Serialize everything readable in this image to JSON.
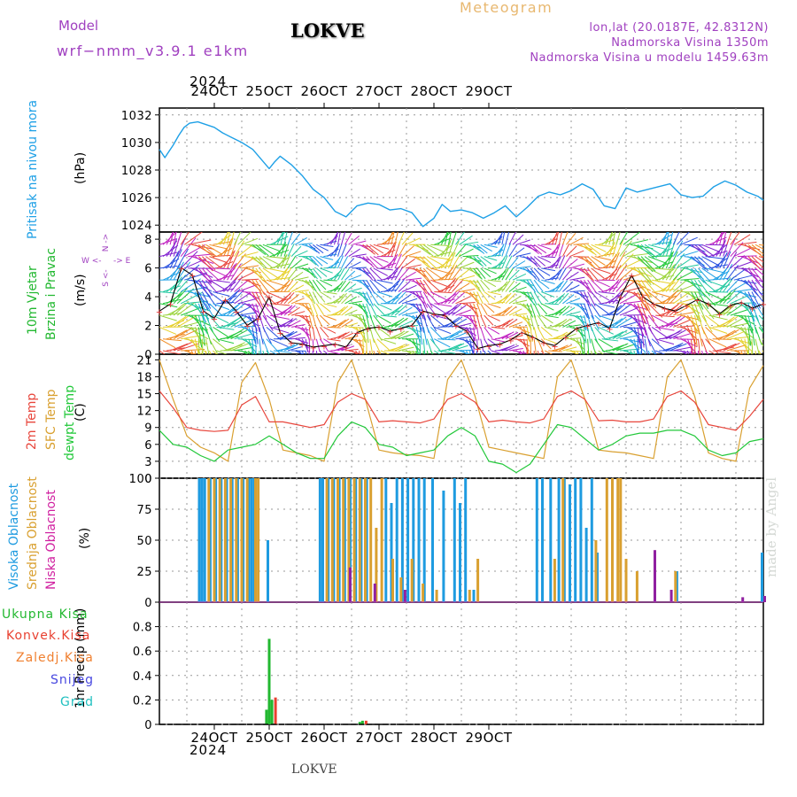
{
  "header": {
    "model_label": "Model",
    "model_name": "wrf−nmm_v3.9.1  e1km",
    "station": "LOKVE",
    "meteogram": "Meteogram",
    "lonlat": "lon,lat (20.0187E, 42.8312N)",
    "elev": "Nadmorska Visina 1350m",
    "elev_model": "Nadmorska Visina u modelu 1459.63m",
    "year": "2024",
    "footer_station": "LOKVE",
    "watermark": "made by Angel"
  },
  "colors": {
    "pressure": "#1ea0e6",
    "temp2m": "#e8463c",
    "sfc_temp": "#d9a030",
    "dewpt": "#22c83a",
    "high_cloud": "#1e9be0",
    "mid_cloud": "#d9a030",
    "low_cloud": "#9020a0",
    "ukupna": "#22b830",
    "konvek": "#e84030",
    "zaledj": "#f08030",
    "snijeg": "#4848e0",
    "grad": "#20c0c0",
    "wind_speed_line": "#000000",
    "wind_markers": "#e83838"
  },
  "chart_data": [
    {
      "type": "line",
      "panel": "pressure",
      "ylabel": "Pritisak na nivou mora",
      "unit": "(hPa)",
      "ylim": [
        1023.5,
        1032.5
      ],
      "yticks": [
        1024,
        1026,
        1028,
        1030,
        1032
      ],
      "x_unit": "days from 23 Oct 2024 12 UTC",
      "series": [
        {
          "x": [
            0,
            0.1,
            0.15,
            0.25,
            0.35,
            0.45,
            0.55,
            0.7,
            0.85,
            1.0,
            1.15,
            1.3,
            1.5,
            1.7,
            1.85,
            2.0,
            2.1,
            2.2,
            2.4,
            2.6,
            2.8,
            3.0,
            3.2,
            3.4,
            3.6,
            3.8,
            4.0,
            4.2,
            4.4,
            4.6,
            4.8,
            5.0,
            5.15,
            5.3,
            5.5,
            5.7,
            5.9,
            6.1,
            6.3,
            6.5,
            6.7,
            6.9,
            7.1,
            7.3,
            7.5,
            7.7,
            7.9,
            8.1,
            8.3,
            8.5,
            8.7,
            8.9,
            9.1,
            9.3,
            9.5,
            9.7,
            9.9,
            10.1,
            10.3,
            10.5,
            10.7,
            10.9,
            11.0
          ],
          "y": [
            1029.5,
            1028.9,
            1029.2,
            1029.8,
            1030.5,
            1031.1,
            1031.4,
            1031.5,
            1031.3,
            1031.1,
            1030.7,
            1030.4,
            1030.0,
            1029.5,
            1028.8,
            1028.1,
            1028.6,
            1029.0,
            1028.4,
            1027.6,
            1026.6,
            1026.0,
            1025.0,
            1024.6,
            1025.4,
            1025.6,
            1025.5,
            1025.1,
            1025.2,
            1024.9,
            1023.9,
            1024.5,
            1025.5,
            1025.0,
            1025.1,
            1024.9,
            1024.5,
            1024.9,
            1025.4,
            1024.6,
            1025.3,
            1026.1,
            1026.4,
            1026.2,
            1026.5,
            1027.0,
            1026.6,
            1025.4,
            1025.2,
            1026.7,
            1026.4,
            1026.6,
            1026.8,
            1027.0,
            1026.2,
            1026.0,
            1026.1,
            1026.8,
            1027.2,
            1026.9,
            1026.4,
            1026.1,
            1025.8
          ]
        }
      ]
    },
    {
      "type": "line",
      "panel": "wind",
      "ylabel": "10m Vjetar Brzina i Pravac",
      "unit": "(m/s)",
      "ylim": [
        0,
        8.5
      ],
      "yticks": [
        0,
        2,
        4,
        6,
        8
      ],
      "legend_compass": [
        "N",
        "W",
        "E",
        "S"
      ],
      "series": [
        {
          "name": "speed",
          "x": [
            0,
            0.2,
            0.4,
            0.6,
            0.8,
            1.0,
            1.2,
            1.4,
            1.6,
            1.8,
            2.0,
            2.2,
            2.4,
            2.6,
            2.8,
            3.0,
            3.2,
            3.4,
            3.6,
            3.8,
            4.0,
            4.2,
            4.4,
            4.6,
            4.8,
            5.0,
            5.2,
            5.4,
            5.6,
            5.8,
            6.0,
            6.2,
            6.4,
            6.6,
            6.8,
            7.0,
            7.2,
            7.4,
            7.6,
            7.8,
            8.0,
            8.2,
            8.4,
            8.6,
            8.8,
            9.0,
            9.2,
            9.4,
            9.6,
            9.8,
            10.0,
            10.2,
            10.4,
            10.6,
            10.8,
            11.0
          ],
          "y": [
            3.0,
            3.5,
            6.0,
            5.5,
            3.0,
            2.5,
            3.8,
            3.0,
            2.0,
            2.5,
            4.0,
            1.5,
            0.8,
            0.7,
            0.5,
            0.6,
            0.7,
            0.5,
            1.5,
            1.8,
            1.9,
            1.6,
            1.8,
            2.0,
            3.0,
            2.8,
            2.7,
            2.0,
            1.6,
            0.4,
            0.6,
            0.7,
            1.0,
            1.5,
            1.2,
            0.8,
            0.6,
            1.2,
            1.8,
            2.0,
            2.2,
            1.8,
            4.0,
            5.5,
            4.0,
            3.5,
            3.2,
            3.0,
            3.4,
            3.8,
            3.5,
            2.8,
            3.4,
            3.6,
            3.2,
            3.5
          ]
        }
      ]
    },
    {
      "type": "line",
      "panel": "temperature",
      "ylabel": [
        "2m Temp",
        "SFC Temp",
        "dewpt Temp"
      ],
      "unit": "(C)",
      "ylim": [
        0,
        22
      ],
      "yticks": [
        0,
        3,
        6,
        9,
        12,
        15,
        18,
        21
      ],
      "series": [
        {
          "name": "2m Temp",
          "x": [
            0,
            0.25,
            0.5,
            0.75,
            1.0,
            1.25,
            1.5,
            1.75,
            2.0,
            2.25,
            2.5,
            2.75,
            3.0,
            3.25,
            3.5,
            3.75,
            4.0,
            4.25,
            4.5,
            4.75,
            5.0,
            5.25,
            5.5,
            5.75,
            6.0,
            6.25,
            6.5,
            6.75,
            7.0,
            7.25,
            7.5,
            7.75,
            8.0,
            8.25,
            8.5,
            8.75,
            9.0,
            9.25,
            9.5,
            9.75,
            10.0,
            10.25,
            10.5,
            10.75,
            11.0
          ],
          "y": [
            15.5,
            12.5,
            9.0,
            8.5,
            8.3,
            8.5,
            13.0,
            14.5,
            10.0,
            10.0,
            9.5,
            9.0,
            9.5,
            13.5,
            15.0,
            14.0,
            10.0,
            10.2,
            10.0,
            9.8,
            10.5,
            14.0,
            15.0,
            13.5,
            10.0,
            10.3,
            10.0,
            9.8,
            10.5,
            14.5,
            15.5,
            14.0,
            10.2,
            10.3,
            10.0,
            10.0,
            10.5,
            14.5,
            15.5,
            13.5,
            9.5,
            9.0,
            8.5,
            11.0,
            14.0
          ]
        },
        {
          "name": "SFC Temp",
          "x": [
            0,
            0.25,
            0.5,
            0.75,
            1.0,
            1.25,
            1.5,
            1.75,
            2.0,
            2.25,
            2.5,
            2.75,
            3.0,
            3.25,
            3.5,
            3.75,
            4.0,
            4.25,
            4.5,
            4.75,
            5.0,
            5.25,
            5.5,
            5.75,
            6.0,
            6.25,
            6.5,
            6.75,
            7.0,
            7.25,
            7.5,
            7.75,
            8.0,
            8.25,
            8.5,
            8.75,
            9.0,
            9.25,
            9.5,
            9.75,
            10.0,
            10.25,
            10.5,
            10.75,
            11.0
          ],
          "y": [
            21.0,
            14.0,
            7.5,
            5.5,
            4.5,
            3.0,
            17.0,
            20.5,
            14.0,
            5.0,
            4.5,
            4.0,
            3.0,
            17.0,
            21.0,
            14.0,
            5.0,
            4.5,
            4.2,
            4.0,
            3.5,
            17.5,
            21.0,
            14.5,
            5.5,
            5.0,
            4.5,
            4.0,
            3.5,
            18.0,
            21.0,
            14.0,
            5.0,
            4.7,
            4.5,
            4.0,
            3.5,
            18.0,
            21.0,
            14.5,
            4.5,
            3.5,
            3.0,
            16.0,
            20.0
          ]
        },
        {
          "name": "dewpt Temp",
          "x": [
            0,
            0.25,
            0.5,
            0.75,
            1.0,
            1.25,
            1.5,
            1.75,
            2.0,
            2.25,
            2.5,
            2.75,
            3.0,
            3.25,
            3.5,
            3.75,
            4.0,
            4.25,
            4.5,
            4.75,
            5.0,
            5.25,
            5.5,
            5.75,
            6.0,
            6.25,
            6.5,
            6.75,
            7.0,
            7.25,
            7.5,
            7.75,
            8.0,
            8.25,
            8.5,
            8.75,
            9.0,
            9.25,
            9.5,
            9.75,
            10.0,
            10.25,
            10.5,
            10.75,
            11.0
          ],
          "y": [
            8.5,
            6.0,
            5.5,
            4.0,
            3.0,
            5.0,
            5.5,
            6.0,
            7.5,
            6.0,
            4.5,
            3.5,
            3.5,
            7.5,
            10.0,
            9.0,
            6.0,
            5.5,
            4.0,
            4.5,
            5.0,
            7.5,
            9.0,
            7.5,
            3.0,
            2.5,
            1.0,
            2.5,
            6.0,
            9.5,
            9.0,
            7.0,
            5.0,
            6.0,
            7.5,
            8.0,
            8.0,
            8.5,
            8.5,
            7.5,
            5.0,
            4.0,
            4.5,
            6.5,
            7.0
          ]
        }
      ]
    },
    {
      "type": "bar",
      "panel": "cloud",
      "ylabel": [
        "Visoka Oblacnost",
        "Srednja Oblacnost",
        "Niska Oblacnost"
      ],
      "unit": "(%)",
      "ylim": [
        0,
        100
      ],
      "yticks": [
        0,
        25,
        50,
        75,
        100
      ],
      "series": [
        {
          "name": "Visoka Oblacnost",
          "x": [
            0.75,
            0.8,
            0.85,
            0.95,
            1.05,
            1.15,
            1.25,
            1.35,
            1.45,
            1.55,
            1.65,
            1.7,
            1.75,
            2.0,
            2.95,
            3.0,
            3.1,
            3.2,
            3.3,
            3.4,
            3.5,
            3.6,
            3.7,
            3.8,
            4.15,
            4.25,
            4.35,
            4.45,
            4.55,
            4.65,
            4.75,
            4.85,
            5.0,
            5.2,
            5.4,
            5.5,
            5.6,
            5.75,
            6.9,
            7.0,
            7.15,
            7.3,
            7.4,
            7.5,
            7.6,
            7.7,
            7.8,
            7.9,
            8.0,
            9.45,
            11.0
          ],
          "y": [
            100,
            100,
            100,
            100,
            100,
            100,
            100,
            100,
            100,
            100,
            100,
            100,
            100,
            50,
            100,
            100,
            100,
            100,
            100,
            100,
            100,
            100,
            100,
            100,
            100,
            80,
            100,
            100,
            100,
            100,
            100,
            100,
            100,
            90,
            100,
            80,
            100,
            10,
            100,
            100,
            100,
            100,
            100,
            95,
            100,
            100,
            60,
            100,
            40,
            25,
            40
          ]
        },
        {
          "name": "Srednja Oblacnost",
          "x": [
            0.9,
            1.0,
            1.1,
            1.2,
            1.3,
            1.4,
            1.5,
            1.6,
            1.75,
            1.8,
            3.05,
            3.15,
            3.25,
            3.35,
            3.45,
            3.55,
            3.65,
            3.75,
            3.85,
            3.95,
            4.05,
            4.25,
            4.4,
            4.6,
            4.8,
            5.05,
            5.65,
            5.8,
            7.2,
            7.35,
            7.95,
            8.15,
            8.25,
            8.35,
            8.4,
            8.5,
            8.7,
            9.4
          ],
          "y": [
            100,
            100,
            100,
            100,
            100,
            100,
            100,
            100,
            100,
            100,
            100,
            100,
            100,
            100,
            100,
            100,
            100,
            100,
            100,
            60,
            100,
            35,
            20,
            35,
            15,
            10,
            10,
            35,
            35,
            100,
            50,
            100,
            100,
            100,
            100,
            35,
            25,
            25
          ]
        },
        {
          "name": "Niska Oblacnost",
          "x": [
            3.45,
            3.9,
            4.45,
            9.0,
            9.3,
            10.6,
            11.0
          ],
          "y": [
            28,
            15,
            10,
            42,
            10,
            4,
            5
          ]
        }
      ]
    },
    {
      "type": "bar",
      "panel": "precip",
      "ylabel": "1hr Precip (mm)",
      "ylim": [
        0,
        1.0
      ],
      "yticks": [
        0,
        0.2,
        0.4,
        0.6,
        0.8
      ],
      "legend": [
        "Ukupna Kisa",
        "Konvek.Kisa",
        "Zaledj.Kisa",
        "Snijeg",
        "Grad"
      ],
      "series": [
        {
          "name": "Ukupna Kisa",
          "x": [
            1.9,
            1.95,
            2.0,
            2.05,
            2.1,
            2.15,
            2.2,
            3.65,
            3.7
          ],
          "y": [
            0,
            0.12,
            0.7,
            0.2,
            0,
            0,
            0,
            0.02,
            0.03
          ]
        },
        {
          "name": "Konvek.Kisa",
          "x": [
            2.05,
            3.7
          ],
          "y": [
            0.22,
            0.03
          ]
        },
        {
          "name": "Zaledj.Kisa",
          "x": [],
          "y": []
        },
        {
          "name": "Snijeg",
          "x": [],
          "y": []
        },
        {
          "name": "Grad",
          "x": [],
          "y": []
        }
      ]
    }
  ],
  "x_axis": {
    "ticks": [
      "24OCT",
      "25OCT",
      "26OCT",
      "27OCT",
      "28OCT",
      "29OCT"
    ],
    "year": "2024",
    "xlim_days": [
      0,
      11
    ]
  }
}
